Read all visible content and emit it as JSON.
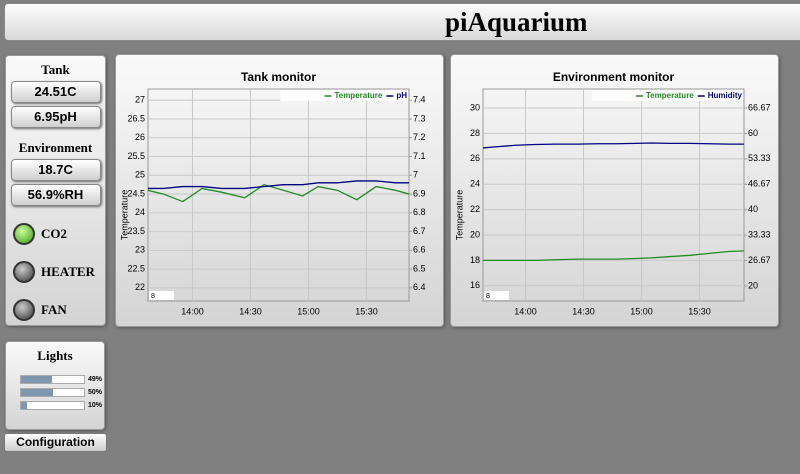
{
  "header": {
    "title": "piAquarium"
  },
  "sidebar": {
    "groups": [
      {
        "title": "Tank",
        "readings": [
          "24.51C",
          "6.95pH"
        ]
      },
      {
        "title": "Environment",
        "readings": [
          "18.7C",
          "56.9%RH"
        ]
      }
    ],
    "indicators": [
      {
        "label": "CO2",
        "state": "on"
      },
      {
        "label": "HEATER",
        "state": "off"
      },
      {
        "label": "FAN",
        "state": "off"
      }
    ]
  },
  "lights": {
    "title": "Lights",
    "values": [
      49,
      50,
      10
    ],
    "value_labels": [
      "49%",
      "50%",
      "10%"
    ]
  },
  "buttons": {
    "configuration": "Configuration"
  },
  "chart_data": [
    {
      "type": "line",
      "title": "Tank monitor",
      "y_label": "Temperature",
      "range_label": "8",
      "grid": true,
      "x": [
        "13:37",
        "13:45",
        "13:55",
        "14:05",
        "14:15",
        "14:27",
        "14:37",
        "14:47",
        "14:57",
        "15:05",
        "15:15",
        "15:25",
        "15:35",
        "15:45",
        "15:52"
      ],
      "xlim": [
        "13:37",
        "15:52"
      ],
      "xticks": [
        "14:00",
        "14:30",
        "15:00",
        "15:30"
      ],
      "ylim": [
        21.65,
        27.3
      ],
      "yticks": [
        22,
        22.5,
        23,
        23.5,
        24,
        24.5,
        25,
        25.5,
        26,
        26.5,
        27
      ],
      "y2lim": [
        6.33,
        7.46
      ],
      "y2ticks": [
        6.4,
        6.5,
        6.6,
        6.7,
        6.8,
        6.9,
        7,
        7.1,
        7.2,
        7.3,
        7.4
      ],
      "series": [
        {
          "name": "Temperature",
          "color": "#228b22",
          "values": [
            24.6,
            24.5,
            24.3,
            24.65,
            24.55,
            24.4,
            24.75,
            24.6,
            24.45,
            24.7,
            24.6,
            24.35,
            24.7,
            24.6,
            24.5
          ]
        },
        {
          "name": "pH",
          "color": "#000080",
          "axis": "y2",
          "values": [
            6.93,
            6.93,
            6.94,
            6.94,
            6.93,
            6.93,
            6.94,
            6.95,
            6.95,
            6.96,
            6.96,
            6.97,
            6.97,
            6.96,
            6.96
          ]
        }
      ]
    },
    {
      "type": "line",
      "title": "Environment monitor",
      "y_label": "Temperature",
      "range_label": "8",
      "grid": true,
      "x": [
        "13:38",
        "13:45",
        "13:55",
        "14:05",
        "14:15",
        "14:27",
        "14:37",
        "14:47",
        "14:57",
        "15:05",
        "15:15",
        "15:25",
        "15:35",
        "15:45",
        "15:53"
      ],
      "xlim": [
        "13:38",
        "15:53"
      ],
      "xticks": [
        "14:00",
        "14:30",
        "15:00",
        "15:30"
      ],
      "ylim": [
        14.8,
        31.5
      ],
      "yticks": [
        16,
        18,
        20,
        22,
        24,
        26,
        28,
        30
      ],
      "y2lim": [
        16.06,
        71.65
      ],
      "y2ticks": [
        20,
        26.67,
        33.33,
        40,
        46.67,
        53.33,
        60,
        66.67
      ],
      "series": [
        {
          "name": "Temperature",
          "color": "#228b22",
          "values": [
            18,
            18,
            18,
            18,
            18.05,
            18.1,
            18.1,
            18.1,
            18.15,
            18.2,
            18.3,
            18.4,
            18.55,
            18.7,
            18.75
          ]
        },
        {
          "name": "Humidity",
          "color": "#000080",
          "axis": "y2",
          "values": [
            56.2,
            56.5,
            56.9,
            57.1,
            57.2,
            57.2,
            57.3,
            57.3,
            57.4,
            57.5,
            57.4,
            57.4,
            57.3,
            57.2,
            57.2
          ]
        }
      ]
    }
  ]
}
